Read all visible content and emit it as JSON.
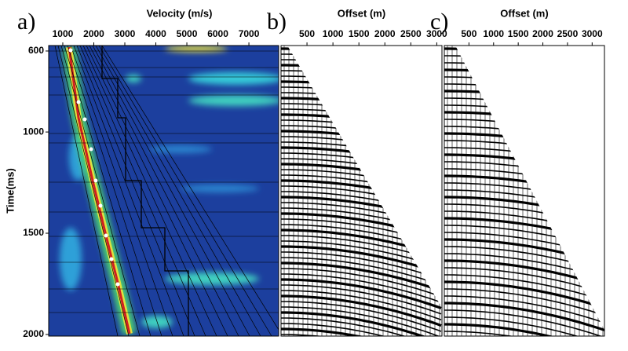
{
  "chart_data": [
    {
      "type": "semblance",
      "panel_label": "a)",
      "x_label": "Velocity (m/s)",
      "y_label": "Time(ms)",
      "xlim": [
        545,
        7960
      ],
      "ylim": [
        573,
        2008
      ],
      "xticks": [
        1000,
        2000,
        3000,
        4000,
        5000,
        6000,
        7000
      ],
      "yticks": [
        600,
        1000,
        1500,
        2000
      ]
    },
    {
      "type": "gather",
      "panel_label": "b)",
      "x_label": "Offset (m)",
      "xlim": [
        0,
        3100
      ],
      "ylim": [
        573,
        2008
      ],
      "xticks": [
        500,
        1000,
        1500,
        2000,
        2500,
        3000
      ]
    },
    {
      "type": "gather",
      "panel_label": "c)",
      "x_label": "Offset (m)",
      "xlim": [
        0,
        3250
      ],
      "ylim": [
        573,
        2008
      ],
      "xticks": [
        500,
        1000,
        1500,
        2000,
        2500,
        3000
      ]
    }
  ]
}
